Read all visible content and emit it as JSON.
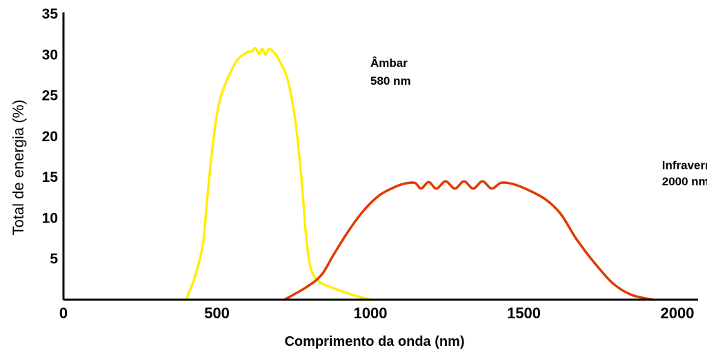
{
  "chart_data": {
    "type": "line",
    "title": "",
    "xlabel": "Comprimento da onda (nm)",
    "ylabel": "Total de energia (%)",
    "xlim": [
      0,
      2000
    ],
    "ylim": [
      0,
      35
    ],
    "x_ticks": [
      "0",
      "500",
      "1000",
      "1500",
      "2000"
    ],
    "y_ticks": [
      "5",
      "10",
      "15",
      "20",
      "25",
      "30",
      "35"
    ],
    "grid": false,
    "legend": "none",
    "series": [
      {
        "color": "#ffee00",
        "points": [
          [
            400,
            0
          ],
          [
            430,
            3
          ],
          [
            455,
            7
          ],
          [
            470,
            13
          ],
          [
            490,
            20
          ],
          [
            510,
            24.5
          ],
          [
            540,
            27.5
          ],
          [
            570,
            29.5
          ],
          [
            600,
            30.3
          ],
          [
            615,
            30.4
          ],
          [
            625,
            30.8
          ],
          [
            637,
            30.1
          ],
          [
            648,
            30.7
          ],
          [
            658,
            30.0
          ],
          [
            670,
            30.7
          ],
          [
            685,
            30.3
          ],
          [
            700,
            29.5
          ],
          [
            730,
            27
          ],
          [
            755,
            22
          ],
          [
            775,
            15
          ],
          [
            790,
            8
          ],
          [
            805,
            4
          ],
          [
            830,
            2.3
          ],
          [
            880,
            1.4
          ],
          [
            950,
            0.5
          ],
          [
            1000,
            0
          ]
        ]
      },
      {
        "color": "#e03a00",
        "points": [
          [
            720,
            0
          ],
          [
            790,
            1.5
          ],
          [
            840,
            3
          ],
          [
            880,
            5.5
          ],
          [
            930,
            8.5
          ],
          [
            980,
            11
          ],
          [
            1030,
            12.8
          ],
          [
            1080,
            13.8
          ],
          [
            1110,
            14.2
          ],
          [
            1145,
            14.3
          ],
          [
            1165,
            13.6
          ],
          [
            1190,
            14.4
          ],
          [
            1215,
            13.6
          ],
          [
            1245,
            14.5
          ],
          [
            1275,
            13.6
          ],
          [
            1305,
            14.5
          ],
          [
            1335,
            13.6
          ],
          [
            1365,
            14.5
          ],
          [
            1395,
            13.6
          ],
          [
            1425,
            14.3
          ],
          [
            1460,
            14.2
          ],
          [
            1510,
            13.5
          ],
          [
            1570,
            12.3
          ],
          [
            1620,
            10.5
          ],
          [
            1670,
            7.5
          ],
          [
            1730,
            4.5
          ],
          [
            1790,
            2
          ],
          [
            1850,
            0.6
          ],
          [
            1920,
            0
          ]
        ]
      }
    ],
    "annotations": [
      {
        "text": "Âmbar",
        "x": 1000,
        "y": 28.5
      },
      {
        "text": "580 nm",
        "x": 1000,
        "y": 26.3
      },
      {
        "text": "Infravermelho",
        "x": 1950,
        "y": 16
      },
      {
        "text": "2000 nm",
        "x": 1950,
        "y": 14
      }
    ]
  }
}
